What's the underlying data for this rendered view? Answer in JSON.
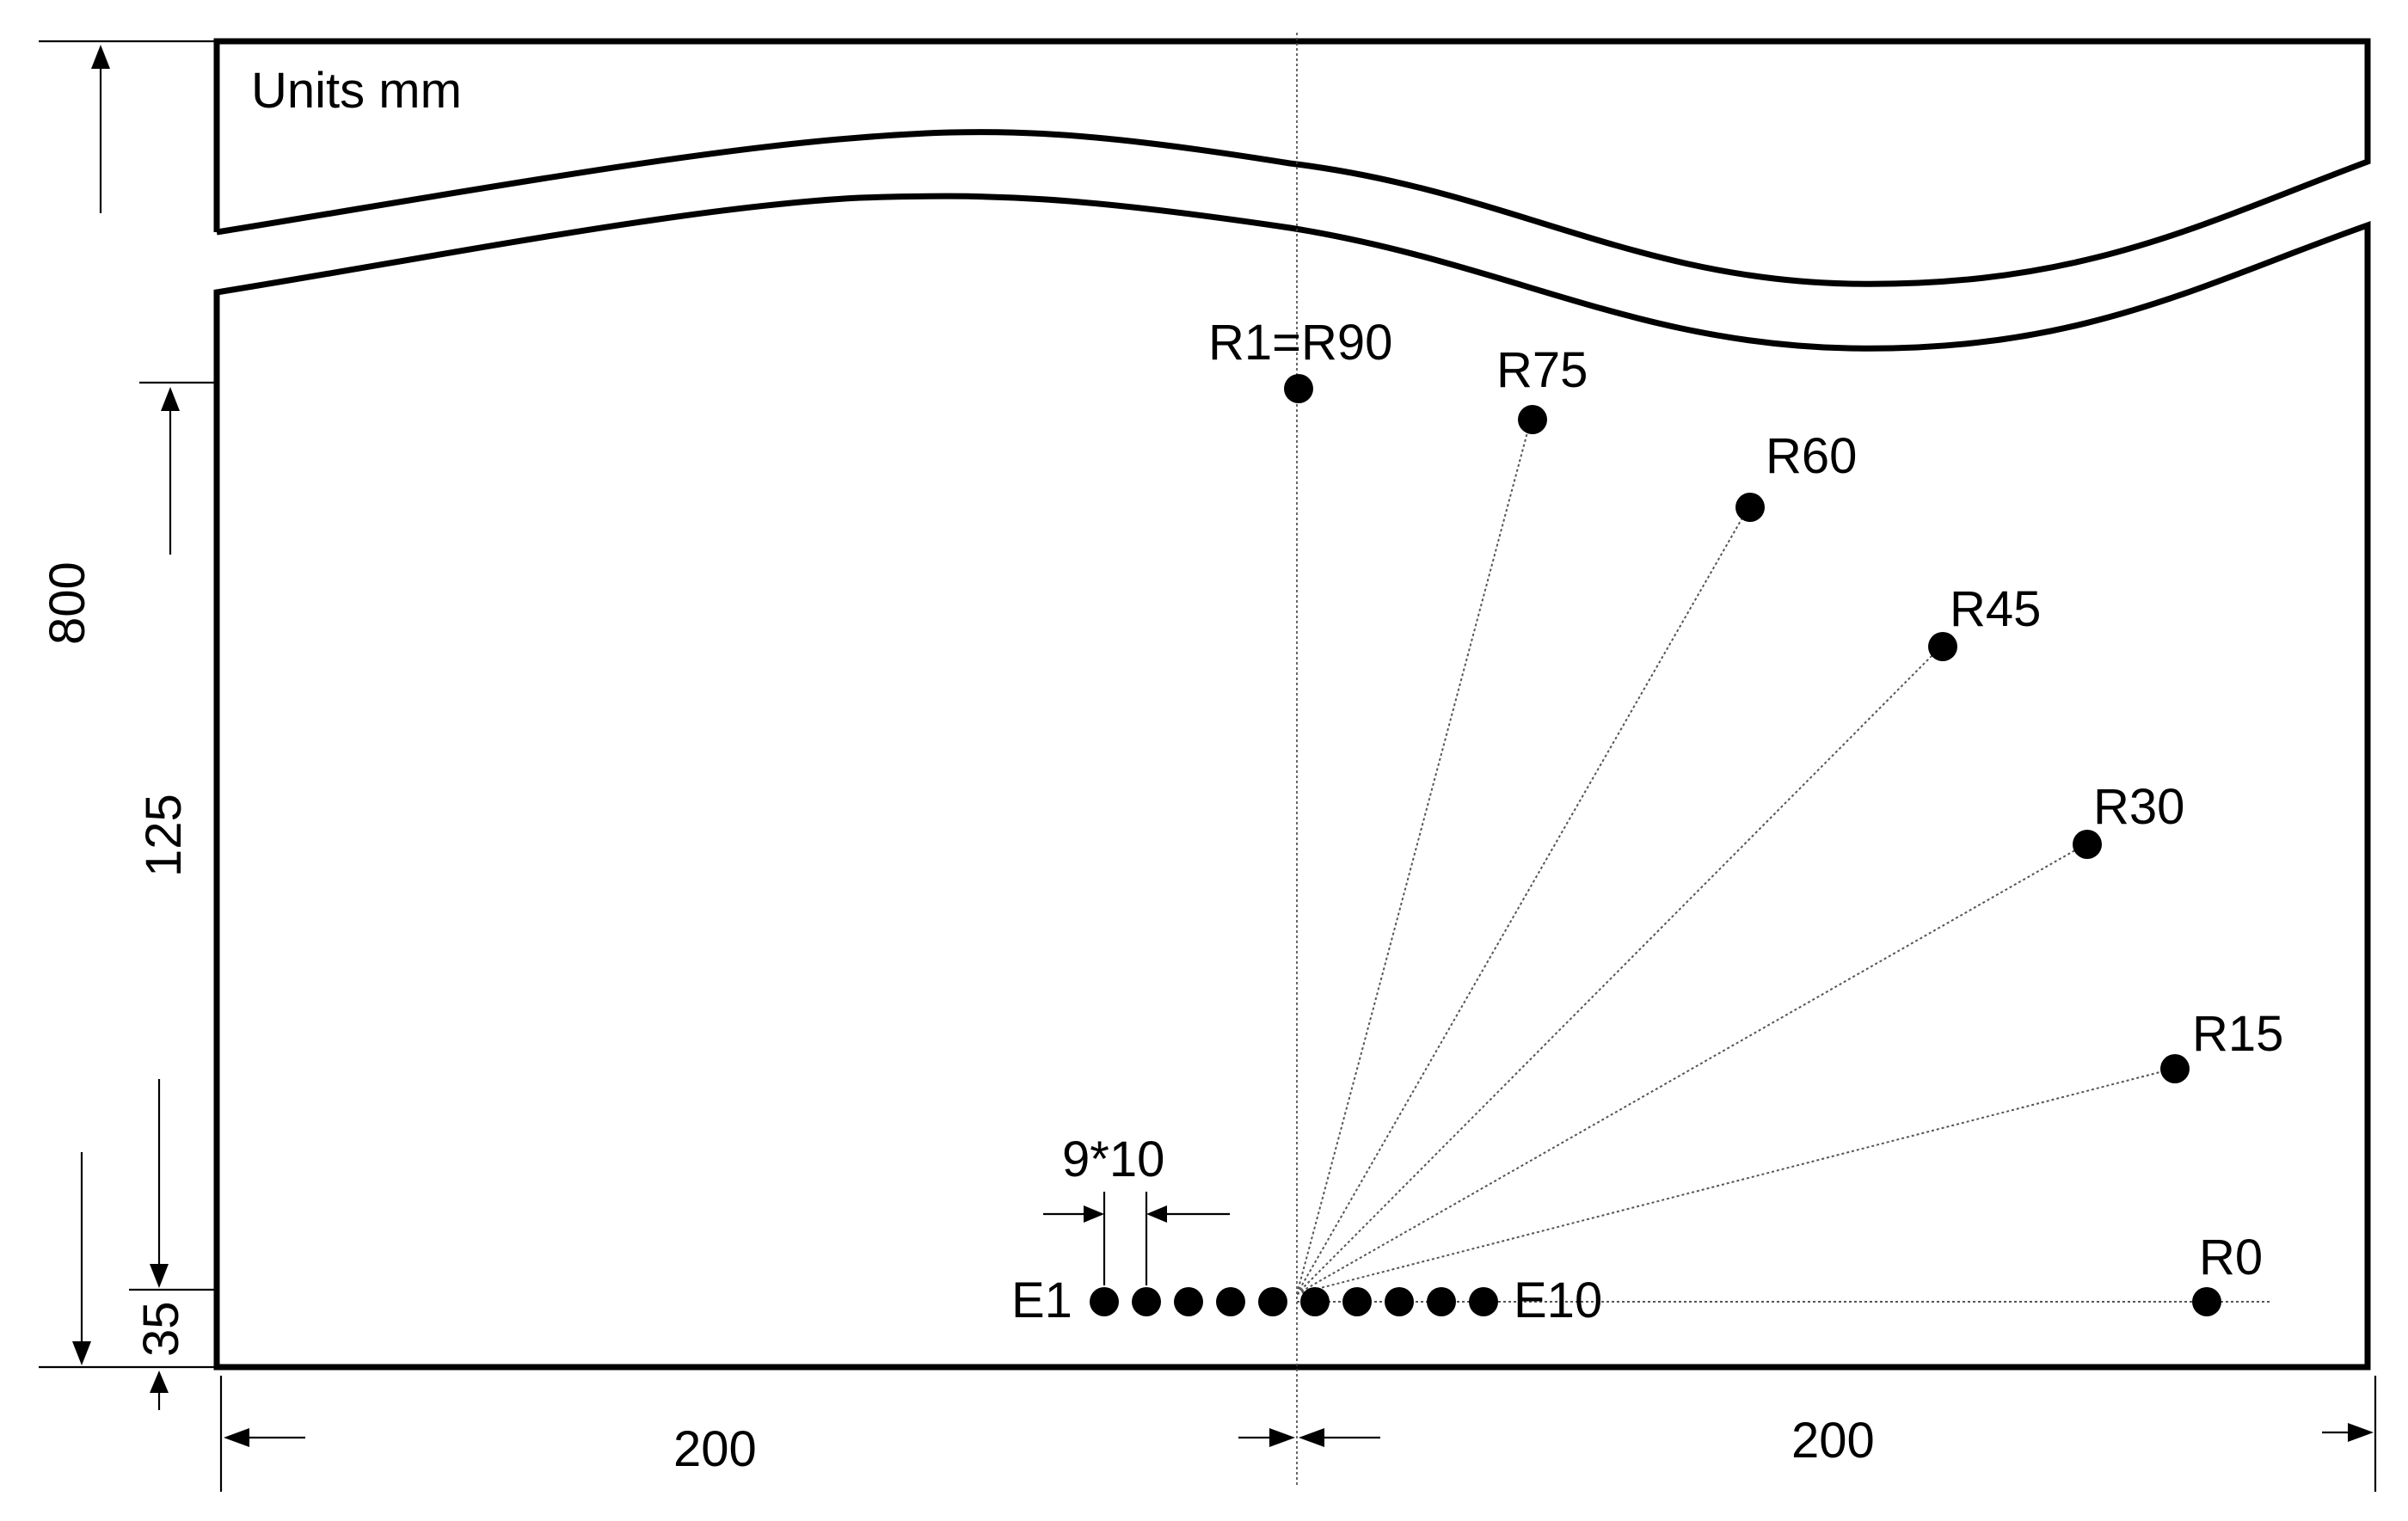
{
  "units_label": "Units mm",
  "dimensions": {
    "total_height": "800",
    "receiver_height": "125",
    "source_depth": "35",
    "left_width": "200",
    "right_width": "200",
    "electrode_spacing": "9*10"
  },
  "receivers": [
    {
      "label": "R1=R90",
      "angle_deg": 90
    },
    {
      "label": "R75",
      "angle_deg": 75
    },
    {
      "label": "R60",
      "angle_deg": 60
    },
    {
      "label": "R45",
      "angle_deg": 45
    },
    {
      "label": "R30",
      "angle_deg": 30
    },
    {
      "label": "R15",
      "angle_deg": 15
    },
    {
      "label": "R0",
      "angle_deg": 0
    }
  ],
  "electrodes": {
    "first_label": "E1",
    "last_label": "E10",
    "count": 10
  }
}
